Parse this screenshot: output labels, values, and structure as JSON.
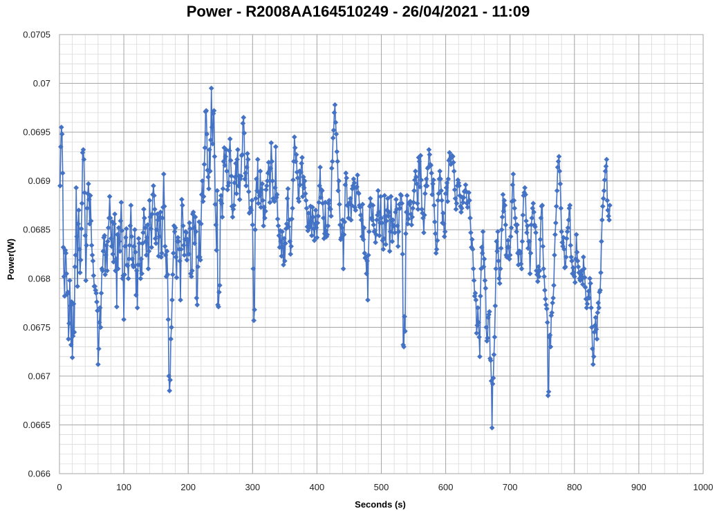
{
  "chart_data": {
    "type": "line",
    "title": "Power - R2008AA164510249 - 26/04/2021 - 11:09",
    "xlabel": "Seconds (s)",
    "ylabel": "Power(W)",
    "xlim": [
      0,
      1000
    ],
    "ylim": [
      0.066,
      0.0705
    ],
    "x_major_step": 100,
    "x_minor_step": 20,
    "y_major_step": 0.0005,
    "y_minor_step": 0.0001,
    "x_tick_labels": [
      "0",
      "100",
      "200",
      "300",
      "400",
      "500",
      "600",
      "700",
      "800",
      "900",
      "1000"
    ],
    "y_tick_labels": [
      "0.066",
      "0.0665",
      "0.067",
      "0.0675",
      "0.068",
      "0.0685",
      "0.069",
      "0.0695",
      "0.07",
      "0.0705"
    ],
    "grid": true,
    "marker": "diamond",
    "series_color": "#4472C4",
    "grid_color": "#bfbfbf",
    "series": [
      {
        "x_start": 1,
        "x_step": 1,
        "values": [
          0.06895,
          0.06935,
          0.06955,
          0.06948,
          0.06908,
          0.06832,
          0.06802,
          0.06782,
          0.06829,
          0.06826,
          0.06805,
          0.06784,
          0.06786,
          0.06738,
          0.06754,
          0.06798,
          0.06772,
          0.06732,
          0.06776,
          0.06719,
          0.06741,
          0.06774,
          0.06745,
          0.06812,
          0.06824,
          0.06893,
          0.06843,
          0.06792,
          0.06856,
          0.0687,
          0.0683,
          0.06806,
          0.06819,
          0.06851,
          0.06877,
          0.06929,
          0.06932,
          0.06922,
          0.06888,
          0.06844,
          0.06798,
          0.06834,
          0.06872,
          0.06887,
          0.06897,
          0.06881,
          0.06856,
          0.06885,
          0.06859,
          0.06834,
          0.06824,
          0.06818,
          0.06803,
          0.06792,
          0.06792,
          0.06788,
          0.06785,
          0.06776,
          0.06767,
          0.06712,
          0.06728,
          0.06755,
          0.0677,
          0.0675,
          0.06785,
          0.0681,
          0.06808,
          0.06828,
          0.06842,
          0.06844,
          0.06804,
          0.06824,
          0.06834,
          0.06808,
          0.06838,
          0.06852,
          0.06862,
          0.06884,
          0.06862,
          0.06841,
          0.06833,
          0.06858,
          0.06825,
          0.06817,
          0.06856,
          0.06866,
          0.06808,
          0.0682,
          0.06771,
          0.06845,
          0.0681,
          0.06852,
          0.06838,
          0.06828,
          0.06859,
          0.06878,
          0.06849,
          0.068,
          0.06803,
          0.06758,
          0.06804,
          0.06833,
          0.06842,
          0.06851,
          0.06814,
          0.06813,
          0.068,
          0.0682,
          0.06834,
          0.06854,
          0.06875,
          0.06843,
          0.0682,
          0.06814,
          0.06812,
          0.06833,
          0.0685,
          0.06827,
          0.06783,
          0.06808,
          0.0677,
          0.06814,
          0.06841,
          0.06836,
          0.06814,
          0.068,
          0.0682,
          0.06805,
          0.06836,
          0.06847,
          0.06871,
          0.06862,
          0.06852,
          0.06838,
          0.06824,
          0.06842,
          0.06855,
          0.0681,
          0.06828,
          0.0688,
          0.06863,
          0.06851,
          0.06832,
          0.06866,
          0.06886,
          0.06895,
          0.06885,
          0.06871,
          0.06841,
          0.06836,
          0.0685,
          0.06866,
          0.0686,
          0.06823,
          0.06843,
          0.06863,
          0.06868,
          0.06822,
          0.06826,
          0.06862,
          0.06873,
          0.06907,
          0.06874,
          0.06833,
          0.06824,
          0.06802,
          0.06828,
          0.06804,
          0.06758,
          0.067,
          0.06685,
          0.06696,
          0.06738,
          0.0675,
          0.06778,
          0.06804,
          0.06826,
          0.06854,
          0.06848,
          0.06852,
          0.06822,
          0.06801,
          0.06838,
          0.06842,
          0.06838,
          0.0683,
          0.06818,
          0.06778,
          0.0683,
          0.06881,
          0.06875,
          0.06854,
          0.06834,
          0.06824,
          0.0684,
          0.06848,
          0.06847,
          0.06819,
          0.0684,
          0.06839,
          0.06825,
          0.06857,
          0.06851,
          0.06805,
          0.06802,
          0.06808,
          0.06866,
          0.06868,
          0.06852,
          0.06836,
          0.06863,
          0.06848,
          0.0678,
          0.06773,
          0.06812,
          0.06822,
          0.06858,
          0.06822,
          0.06819,
          0.06856,
          0.06886,
          0.069,
          0.06879,
          0.06884,
          0.06917,
          0.06934,
          0.06971,
          0.06972,
          0.06948,
          0.06911,
          0.06904,
          0.06892,
          0.06932,
          0.0691,
          0.06942,
          0.06995,
          0.06955,
          0.06938,
          0.06969,
          0.06972,
          0.06925,
          0.06876,
          0.06855,
          0.06829,
          0.0689,
          0.06773,
          0.06771,
          0.06786,
          0.06793,
          0.0688,
          0.06885,
          0.06877,
          0.06863,
          0.06892,
          0.0692,
          0.06934,
          0.06916,
          0.06925,
          0.06932,
          0.0691,
          0.06891,
          0.06895,
          0.06898,
          0.06931,
          0.06943,
          0.06921,
          0.06905,
          0.06874,
          0.06863,
          0.06871,
          0.06875,
          0.06898,
          0.06904,
          0.06918,
          0.06887,
          0.06922,
          0.06932,
          0.06895,
          0.06905,
          0.06881,
          0.06902,
          0.06905,
          0.06926,
          0.06927,
          0.06959,
          0.06965,
          0.06949,
          0.06902,
          0.06908,
          0.06895,
          0.06914,
          0.06928,
          0.06922,
          0.06889,
          0.06867,
          0.06868,
          0.06872,
          0.0687,
          0.0688,
          0.06855,
          0.0681,
          0.06757,
          0.06768,
          0.0685,
          0.06882,
          0.06902,
          0.0689,
          0.06922,
          0.06877,
          0.06888,
          0.06885,
          0.0691,
          0.06873,
          0.06891,
          0.06897,
          0.0688,
          0.06854,
          0.06873,
          0.06862,
          0.06869,
          0.06891,
          0.06895,
          0.069,
          0.06908,
          0.06919,
          0.0691,
          0.06878,
          0.06913,
          0.06939,
          0.0692,
          0.069,
          0.06882,
          0.0688,
          0.06879,
          0.06893,
          0.06935,
          0.06883,
          0.06886,
          0.06861,
          0.06854,
          0.06844,
          0.06832,
          0.06849,
          0.06838,
          0.06823,
          0.06848,
          0.06832,
          0.06814,
          0.06841,
          0.06818,
          0.06836,
          0.06851,
          0.06856,
          0.06882,
          0.06892,
          0.06853,
          0.0686,
          0.06838,
          0.06825,
          0.06833,
          0.06861,
          0.06872,
          0.06901,
          0.0692,
          0.06945,
          0.06934,
          0.0692,
          0.06927,
          0.06909,
          0.06903,
          0.06882,
          0.06879,
          0.0691,
          0.06896,
          0.06909,
          0.06918,
          0.06924,
          0.06884,
          0.06904,
          0.06893,
          0.069,
          0.06887,
          0.0688,
          0.06872,
          0.06853,
          0.06849,
          0.06867,
          0.06852,
          0.06855,
          0.06874,
          0.06858,
          0.06844,
          0.06873,
          0.06863,
          0.06851,
          0.06839,
          0.06856,
          0.0687,
          0.06852,
          0.06842,
          0.06857,
          0.06864,
          0.06878,
          0.06895,
          0.06914,
          0.06883,
          0.06891,
          0.0689,
          0.06877,
          0.06862,
          0.06841,
          0.06846,
          0.06878,
          0.06849,
          0.06843,
          0.06845,
          0.06854,
          0.06877,
          0.0688,
          0.06872,
          0.06871,
          0.06864,
          0.06913,
          0.0692,
          0.06944,
          0.06952,
          0.0697,
          0.06978,
          0.0696,
          0.06948,
          0.0693,
          0.0692,
          0.0689,
          0.069,
          0.06876,
          0.06855,
          0.0684,
          0.06842,
          0.06852,
          0.0686,
          0.0681,
          0.06845,
          0.06858,
          0.06896,
          0.06908,
          0.06903,
          0.06875,
          0.06875,
          0.06862,
          0.06877,
          0.06878,
          0.06882,
          0.0686,
          0.06875,
          0.06892,
          0.06895,
          0.06902,
          0.06898,
          0.06873,
          0.0687,
          0.06893,
          0.06894,
          0.06906,
          0.06888,
          0.06887,
          0.06875,
          0.06873,
          0.06865,
          0.0686,
          0.06843,
          0.06876,
          0.0684,
          0.06852,
          0.06826,
          0.06821,
          0.06822,
          0.06805,
          0.06818,
          0.06778,
          0.06824,
          0.06848,
          0.06874,
          0.06882,
          0.06876,
          0.06862,
          0.0686,
          0.06875,
          0.06855,
          0.06848,
          0.06849,
          0.06837,
          0.06845,
          0.0686,
          0.06865,
          0.0689,
          0.06868,
          0.06844,
          0.06857,
          0.06884,
          0.06862,
          0.06857,
          0.06839,
          0.0683,
          0.06841,
          0.06885,
          0.06864,
          0.06835,
          0.06859,
          0.0687,
          0.06882,
          0.06864,
          0.06868,
          0.06828,
          0.06848,
          0.06884,
          0.0686,
          0.06838,
          0.0686,
          0.06854,
          0.06854,
          0.06847,
          0.06868,
          0.06881,
          0.06871,
          0.06854,
          0.06833,
          0.06848,
          0.06876,
          0.06872,
          0.06886,
          0.06885,
          0.06877,
          0.06825,
          0.06732,
          0.0673,
          0.06761,
          0.06746,
          0.06846,
          0.06868,
          0.06885,
          0.06856,
          0.06861,
          0.06877,
          0.06876,
          0.06879,
          0.06866,
          0.06855,
          0.06863,
          0.06872,
          0.06878,
          0.0689,
          0.06901,
          0.0691,
          0.06904,
          0.06897,
          0.06877,
          0.06871,
          0.06924,
          0.0692,
          0.06894,
          0.06926,
          0.06901,
          0.06871,
          0.06867,
          0.06862,
          0.06847,
          0.06865,
          0.06887,
          0.06895,
          0.06902,
          0.06895,
          0.06913,
          0.06914,
          0.06932,
          0.06927,
          0.06917,
          0.06916,
          0.06908,
          0.06886,
          0.06897,
          0.06901,
          0.06875,
          0.06858,
          0.06846,
          0.06826,
          0.0683,
          0.06839,
          0.0688,
          0.06887,
          0.06902,
          0.0691,
          0.06902,
          0.0689,
          0.0688,
          0.06857,
          0.06867,
          0.06856,
          0.06843,
          0.06848,
          0.06887,
          0.06893,
          0.06898,
          0.06879,
          0.06902,
          0.06921,
          0.06929,
          0.06923,
          0.06917,
          0.06924,
          0.06926,
          0.06925,
          0.06919,
          0.0691,
          0.06891,
          0.06882,
          0.06871,
          0.06877,
          0.06895,
          0.06901,
          0.06898,
          0.06895,
          0.06885,
          0.06874,
          0.06868,
          0.06872,
          0.06883,
          0.06878,
          0.06883,
          0.06889,
          0.0689,
          0.06896,
          0.06889,
          0.06877,
          0.06873,
          0.06879,
          0.06888,
          0.0688,
          0.06862,
          0.06847,
          0.06832,
          0.0684,
          0.0683,
          0.0681,
          0.06798,
          0.06782,
          0.06785,
          0.06778,
          0.06744,
          0.06752,
          0.0677,
          0.06755,
          0.0674,
          0.0672,
          0.06782,
          0.0681,
          0.06832,
          0.06826,
          0.06848,
          0.06812,
          0.0682,
          0.06798,
          0.0679,
          0.0675,
          0.06736,
          0.06739,
          0.0676,
          0.06763,
          0.06766,
          0.06718,
          0.06716,
          0.06695,
          0.06647,
          0.06692,
          0.06698,
          0.06722,
          0.0674,
          0.06772,
          0.0681,
          0.06838,
          0.06828,
          0.06848,
          0.06818,
          0.068,
          0.06795,
          0.0681,
          0.06831,
          0.0685,
          0.06863,
          0.06886,
          0.06869,
          0.0688,
          0.06875,
          0.06855,
          0.06824,
          0.06822,
          0.06832,
          0.06839,
          0.06832,
          0.0682,
          0.06824,
          0.06843,
          0.06852,
          0.06879,
          0.06896,
          0.06907,
          0.0688,
          0.06872,
          0.06862,
          0.06855,
          0.06848,
          0.06855,
          0.06826,
          0.06814,
          0.06828,
          0.06828,
          0.06826,
          0.06815,
          0.0681,
          0.06838,
          0.06865,
          0.06885,
          0.06888,
          0.06893,
          0.06886,
          0.06859,
          0.06847,
          0.06854,
          0.06831,
          0.06838,
          0.06838,
          0.06805,
          0.06826,
          0.06855,
          0.06862,
          0.06872,
          0.06877,
          0.06868,
          0.06855,
          0.06853,
          0.06847,
          0.06808,
          0.06804,
          0.06797,
          0.06812,
          0.06802,
          0.06808,
          0.0684,
          0.06862,
          0.06874,
          0.06875,
          0.06833,
          0.0681,
          0.06802,
          0.06788,
          0.06779,
          0.06773,
          0.06769,
          0.06755,
          0.0668,
          0.06684,
          0.0674,
          0.06742,
          0.0673,
          0.06762,
          0.06765,
          0.06775,
          0.0678,
          0.06793,
          0.06824,
          0.06845,
          0.06857,
          0.06874,
          0.0689,
          0.06914,
          0.0692,
          0.06925,
          0.0691,
          0.06897,
          0.06872,
          0.06848,
          0.06837,
          0.06833,
          0.06842,
          0.0683,
          0.06811,
          0.06812,
          0.06822,
          0.06841,
          0.06848,
          0.06852,
          0.0686,
          0.06872,
          0.06875,
          0.06834,
          0.06822,
          0.06818,
          0.06805,
          0.06811,
          0.06806,
          0.06802,
          0.06796,
          0.0682,
          0.06845,
          0.06827,
          0.06818,
          0.06812,
          0.06806,
          0.068,
          0.06798,
          0.06804,
          0.06808,
          0.068,
          0.06794,
          0.06822,
          0.0681,
          0.06801,
          0.06791,
          0.06779,
          0.0677,
          0.06774,
          0.0678,
          0.06787,
          0.0678,
          0.068,
          0.06795,
          0.0677,
          0.0675,
          0.06728,
          0.06712,
          0.0672,
          0.06745,
          0.06752,
          0.0676,
          0.06748,
          0.06738,
          0.06765,
          0.06775,
          0.0677,
          0.06786,
          0.06788,
          0.06806,
          0.06838,
          0.0686,
          0.06874,
          0.06882,
          0.0689,
          0.06901,
          0.0691,
          0.06915,
          0.06922,
          0.0688,
          0.0687,
          0.06864,
          0.0686,
          0.06875
        ]
      }
    ]
  }
}
